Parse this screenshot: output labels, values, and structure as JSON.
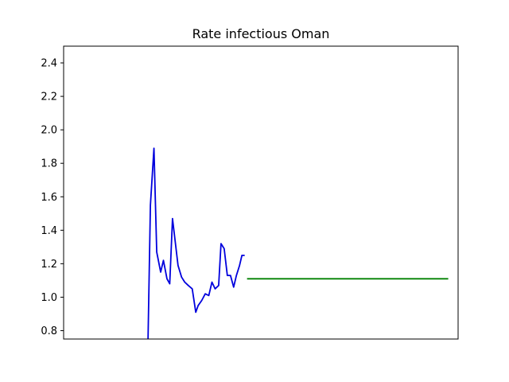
{
  "chart_data": {
    "type": "line",
    "title": "Rate infectious Oman",
    "xlabel": "",
    "ylabel": "",
    "ylim": [
      0.75,
      2.5
    ],
    "xlim": [
      0,
      100
    ],
    "yticks": [
      0.8,
      1.0,
      1.2,
      1.4,
      1.6,
      1.8,
      2.0,
      2.2,
      2.4
    ],
    "ytick_labels": [
      "0.8",
      "1.0",
      "1.2",
      "1.4",
      "1.6",
      "1.8",
      "2.0",
      "2.2",
      "2.4"
    ],
    "xticks_visible": false,
    "grid": false,
    "series": [
      {
        "color": "#0000dd",
        "x": [
          21.4,
          22.0,
          22.9,
          23.6,
          24.6,
          25.3,
          26.2,
          26.9,
          27.6,
          28.2,
          29.0,
          29.9,
          30.7,
          31.6,
          32.6,
          33.5,
          34.1,
          35.0,
          35.9,
          36.8,
          37.6,
          38.4,
          39.3,
          39.9,
          40.7,
          41.5,
          42.3,
          43.1,
          43.8,
          44.6,
          45.2,
          45.9
        ],
        "y": [
          0.75,
          1.55,
          1.89,
          1.27,
          1.15,
          1.22,
          1.11,
          1.08,
          1.47,
          1.35,
          1.19,
          1.12,
          1.09,
          1.07,
          1.05,
          0.91,
          0.95,
          0.98,
          1.02,
          1.01,
          1.09,
          1.05,
          1.07,
          1.32,
          1.29,
          1.13,
          1.13,
          1.06,
          1.13,
          1.19,
          1.25,
          1.25
        ]
      },
      {
        "color": "#008000",
        "x": [
          46.5,
          97.5
        ],
        "y": [
          1.11,
          1.11
        ]
      }
    ]
  }
}
